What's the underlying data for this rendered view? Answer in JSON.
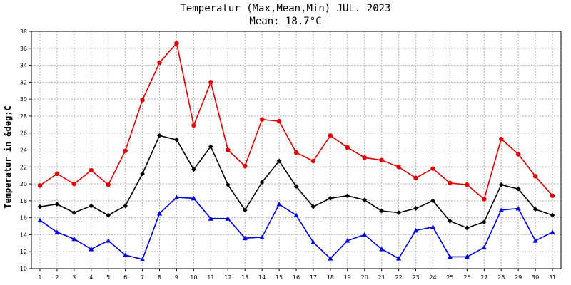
{
  "chart_data": {
    "type": "line",
    "title": "Temperatur (Max,Mean,Min) JUL. 2023",
    "subtitle": "Mean: 18.7°C",
    "ylabel": "Temperatur in &deg;C",
    "xlabel": "",
    "ylim": [
      10,
      38
    ],
    "yticks": [
      10,
      12,
      14,
      16,
      18,
      20,
      22,
      24,
      26,
      28,
      30,
      32,
      34,
      36,
      38
    ],
    "x": [
      1,
      2,
      3,
      4,
      5,
      6,
      7,
      8,
      9,
      10,
      11,
      12,
      13,
      14,
      15,
      16,
      17,
      18,
      19,
      20,
      21,
      22,
      23,
      24,
      25,
      26,
      27,
      28,
      29,
      30,
      31
    ],
    "grid": true,
    "legend": "none",
    "series": [
      {
        "color": "#e00000",
        "marker": "circle",
        "values": [
          19.8,
          21.2,
          20.0,
          21.6,
          19.9,
          23.9,
          29.9,
          34.3,
          36.6,
          26.9,
          32.0,
          24.0,
          22.1,
          27.6,
          27.4,
          23.7,
          22.7,
          25.7,
          24.3,
          23.1,
          22.8,
          22.0,
          20.7,
          21.8,
          20.1,
          19.9,
          18.2,
          25.3,
          23.5,
          20.9,
          18.6
        ]
      },
      {
        "color": "#000000",
        "marker": "diamond",
        "values": [
          17.3,
          17.6,
          16.6,
          17.4,
          16.3,
          17.4,
          21.2,
          25.7,
          25.2,
          21.7,
          24.4,
          19.9,
          16.9,
          20.2,
          22.7,
          19.7,
          17.3,
          18.3,
          18.6,
          18.1,
          16.8,
          16.6,
          17.1,
          18.0,
          15.6,
          14.8,
          15.5,
          19.9,
          19.4,
          17.0,
          16.3
        ]
      },
      {
        "color": "#0000e0",
        "marker": "triangle",
        "values": [
          15.7,
          14.3,
          13.5,
          12.3,
          13.3,
          11.6,
          11.1,
          16.5,
          18.4,
          18.3,
          15.9,
          15.9,
          13.6,
          13.7,
          17.6,
          16.3,
          13.1,
          11.2,
          13.3,
          14.0,
          12.3,
          11.2,
          14.5,
          14.9,
          11.4,
          11.4,
          12.5,
          16.9,
          17.1,
          13.3,
          14.3
        ]
      }
    ]
  }
}
